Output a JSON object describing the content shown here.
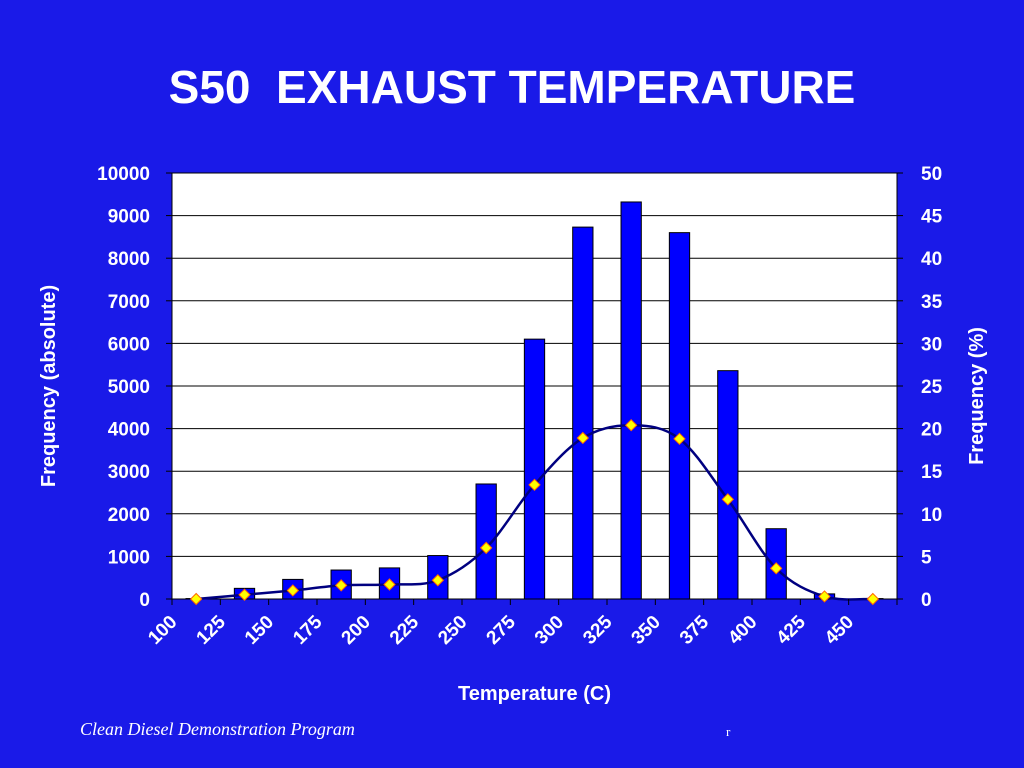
{
  "slide": {
    "title": "S50  EXHAUST TEMPERATURE",
    "footer": "Clean Diesel Demonstration Program",
    "footer_mark": "r"
  },
  "colors": {
    "background": "#1a1ae8",
    "plot_area": "#ffffff",
    "bar": "#0000ff",
    "line": "#000080",
    "marker_fill": "#ffff00",
    "marker_stroke": "#ff6600",
    "text": "#ffffff"
  },
  "chart_data": {
    "type": "bar",
    "title": "S50  EXHAUST TEMPERATURE",
    "xlabel": "Temperature (C)",
    "ylabel": "Frequency (absolute)",
    "y2label": "Frequency (%)",
    "ylim": [
      0,
      10000
    ],
    "y2lim": [
      0,
      50
    ],
    "grid": true,
    "legend": "none",
    "categories": [
      "100",
      "125",
      "150",
      "175",
      "200",
      "225",
      "250",
      "275",
      "300",
      "325",
      "350",
      "375",
      "400",
      "425",
      "450"
    ],
    "yticks": [
      "0",
      "1000",
      "2000",
      "3000",
      "4000",
      "5000",
      "6000",
      "7000",
      "8000",
      "9000",
      "10000"
    ],
    "y2ticks": [
      "0",
      "5",
      "10",
      "15",
      "20",
      "25",
      "30",
      "35",
      "40",
      "45",
      "50"
    ],
    "series": [
      {
        "type": "bar",
        "axis": "left",
        "values": [
          10,
          250,
          460,
          680,
          730,
          1020,
          2700,
          6100,
          8730,
          9320,
          8600,
          5360,
          1650,
          120,
          10
        ]
      },
      {
        "type": "line",
        "axis": "right",
        "values": [
          0.0,
          0.5,
          1.0,
          1.6,
          1.7,
          2.2,
          6.0,
          13.4,
          18.9,
          20.4,
          18.8,
          11.7,
          3.6,
          0.3,
          0.0
        ]
      }
    ]
  }
}
